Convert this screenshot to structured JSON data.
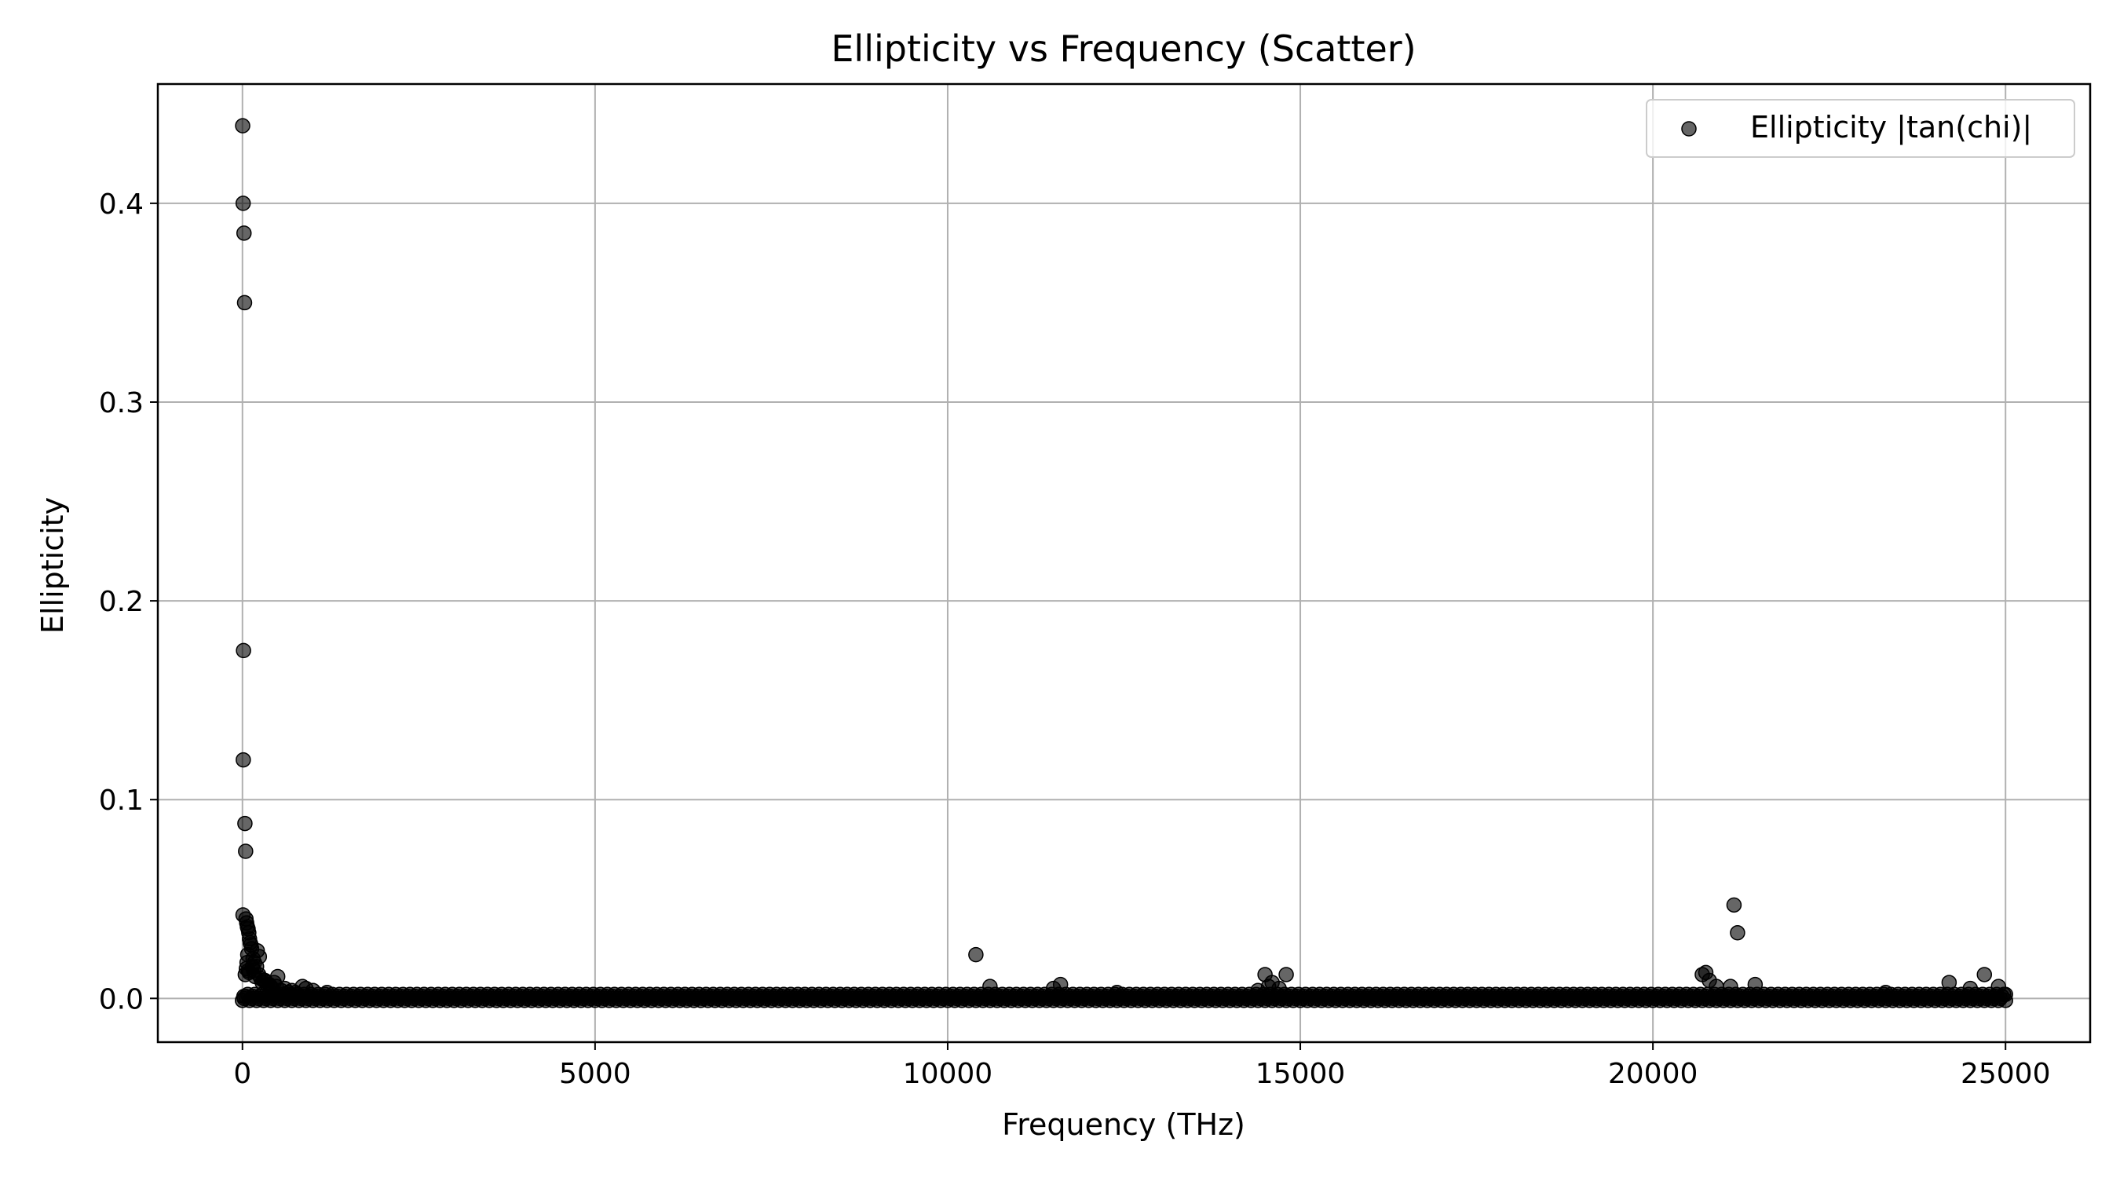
{
  "chart_data": {
    "type": "scatter",
    "title": "Ellipticity vs Frequency (Scatter)",
    "xlabel": "Frequency (THz)",
    "ylabel": "Ellipticity",
    "xlim": [
      -1200,
      26200
    ],
    "ylim": [
      -0.022,
      0.46
    ],
    "xticks": [
      0,
      5000,
      10000,
      15000,
      20000,
      25000
    ],
    "yticks": [
      0.0,
      0.1,
      0.2,
      0.3,
      0.4
    ],
    "xtick_labels": [
      "0",
      "5000",
      "10000",
      "15000",
      "20000",
      "25000"
    ],
    "ytick_labels": [
      "0.0",
      "0.1",
      "0.2",
      "0.3",
      "0.4"
    ],
    "grid": true,
    "legend_position": "top-right",
    "marker_color": "#000000",
    "marker_opacity": 0.6,
    "series": [
      {
        "name": "Ellipticity |tan(chi)|",
        "x": [
          3,
          10,
          22,
          30,
          15,
          12,
          35,
          45,
          8,
          50,
          60,
          70,
          80,
          90,
          100,
          110,
          120,
          130,
          150,
          170,
          200,
          230,
          260,
          300,
          350,
          400,
          450,
          500,
          600,
          700,
          850,
          1000,
          20,
          40,
          55,
          65,
          75,
          85,
          95,
          140,
          160,
          180,
          210,
          240,
          280,
          320,
          380,
          420,
          480,
          550,
          650,
          750,
          900,
          1200,
          10400,
          10600,
          11500,
          11600,
          12400,
          14400,
          14500,
          14550,
          14600,
          14700,
          14800,
          20700,
          20750,
          20800,
          20900,
          21100,
          21150,
          21200,
          21450,
          23300,
          24200,
          24500,
          24700,
          24900,
          25000
        ],
        "y": [
          0.439,
          0.4,
          0.385,
          0.35,
          0.175,
          0.12,
          0.088,
          0.074,
          0.042,
          0.04,
          0.038,
          0.036,
          0.035,
          0.033,
          0.03,
          0.028,
          0.027,
          0.025,
          0.02,
          0.018,
          0.016,
          0.012,
          0.01,
          0.009,
          0.007,
          0.006,
          0.008,
          0.011,
          0.005,
          0.004,
          0.006,
          0.004,
          0.001,
          0.012,
          0.015,
          0.018,
          0.022,
          0.014,
          0.013,
          0.016,
          0.014,
          0.011,
          0.024,
          0.021,
          0.008,
          0.009,
          0.007,
          0.005,
          0.006,
          0.004,
          0.003,
          0.003,
          0.005,
          0.003,
          0.022,
          0.006,
          0.005,
          0.007,
          0.003,
          0.004,
          0.012,
          0.006,
          0.008,
          0.005,
          0.012,
          0.012,
          0.013,
          0.009,
          0.006,
          0.006,
          0.047,
          0.033,
          0.007,
          0.003,
          0.008,
          0.005,
          0.012,
          0.006,
          0.002
        ]
      }
    ],
    "baseline_band": {
      "description_free_range_x": [
        0,
        25000
      ],
      "y_values": [
        -0.001,
        0.0,
        0.001,
        0.002
      ]
    }
  }
}
